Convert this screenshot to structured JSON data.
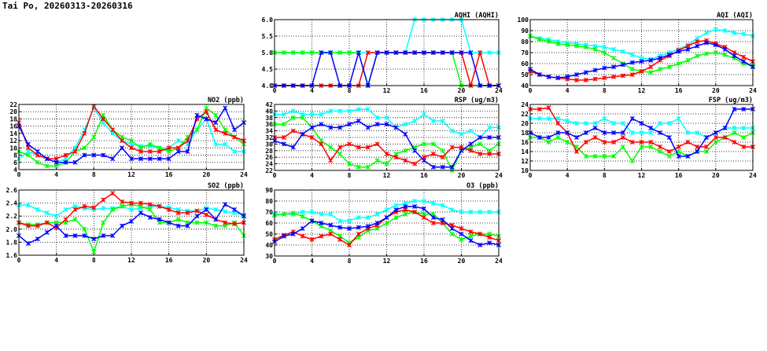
{
  "page": {
    "title": "Tai Po, 20260313-20260316"
  },
  "colors": {
    "day1": "#00ffff",
    "day2": "#00ff00",
    "day3": "#ff0000",
    "day4": "#0000ff"
  },
  "chart_data": [
    {
      "key": "no2",
      "type": "line",
      "title": "NO2 (ppb)",
      "ylim": [
        4,
        22
      ],
      "yticks": [
        4,
        6,
        8,
        10,
        12,
        14,
        16,
        18,
        20,
        22
      ],
      "xlim": [
        0,
        24
      ],
      "xticks": [
        0,
        4,
        8,
        12,
        16,
        20,
        24
      ],
      "grid": true,
      "series": [
        {
          "color": "#00ffff",
          "values": [
            7,
            9,
            8,
            7,
            6,
            7,
            10,
            15,
            21,
            17,
            14,
            12,
            11,
            10.5,
            10.5,
            10,
            10,
            12,
            11,
            15,
            18,
            11,
            11,
            9,
            9
          ]
        },
        {
          "color": "#00ff00",
          "values": [
            9,
            8,
            6,
            5,
            5,
            6,
            9,
            10,
            13,
            19,
            15,
            13,
            12,
            10,
            11,
            10,
            9,
            10,
            13,
            15,
            21,
            19,
            15,
            13,
            11
          ]
        },
        {
          "color": "#ff0000",
          "values": [
            17,
            10,
            8,
            7,
            7,
            8,
            9,
            14,
            21.5,
            18,
            15,
            12,
            10,
            9,
            9,
            9,
            10,
            10,
            12,
            18,
            20,
            15,
            14,
            13,
            12
          ]
        },
        {
          "color": "#0000ff",
          "values": [
            16,
            11,
            9,
            7,
            6,
            6,
            6,
            8,
            8,
            8,
            7,
            10,
            7,
            7,
            7,
            7,
            7,
            9,
            9,
            19,
            18,
            17,
            21,
            15,
            17
          ]
        }
      ]
    },
    {
      "key": "so2",
      "type": "line",
      "title": "SO2 (ppb)",
      "ylim": [
        1.6,
        2.6
      ],
      "yticks": [
        1.6,
        1.8,
        2.0,
        2.2,
        2.4,
        2.6
      ],
      "xlim": [
        0,
        24
      ],
      "xticks": [
        0,
        4,
        8,
        12,
        16,
        20,
        24
      ],
      "grid": true,
      "series": [
        {
          "color": "#00ffff",
          "values": [
            2.37,
            2.37,
            2.3,
            2.25,
            2.2,
            2.3,
            2.35,
            2.32,
            2.3,
            2.32,
            2.32,
            2.35,
            2.3,
            2.32,
            2.35,
            2.35,
            2.33,
            2.3,
            2.28,
            2.28,
            2.32,
            2.3,
            2.27,
            2.25,
            2.22
          ]
        },
        {
          "color": "#00ff00",
          "values": [
            2.1,
            2.07,
            2.07,
            2.1,
            2.1,
            2.1,
            2.15,
            2.0,
            1.65,
            2.1,
            2.3,
            2.35,
            2.38,
            2.35,
            2.3,
            2.1,
            2.1,
            2.15,
            2.1,
            2.1,
            2.1,
            2.05,
            2.05,
            2.1,
            1.9
          ]
        },
        {
          "color": "#ff0000",
          "values": [
            2.1,
            2.05,
            2.05,
            2.1,
            2.02,
            2.15,
            2.3,
            2.35,
            2.33,
            2.45,
            2.55,
            2.42,
            2.4,
            2.4,
            2.38,
            2.35,
            2.3,
            2.25,
            2.25,
            2.28,
            2.22,
            2.15,
            2.1,
            2.08,
            2.1
          ]
        },
        {
          "color": "#0000ff",
          "values": [
            1.9,
            1.78,
            1.85,
            1.95,
            2.05,
            1.9,
            1.9,
            1.9,
            1.85,
            1.9,
            1.9,
            2.05,
            2.12,
            2.25,
            2.18,
            2.15,
            2.1,
            2.05,
            2.05,
            2.2,
            2.3,
            2.15,
            2.38,
            2.3,
            2.2
          ]
        }
      ]
    },
    {
      "key": "aqhi",
      "type": "line",
      "title": "AQHI (AQHI)",
      "ylim": [
        4.0,
        6.0
      ],
      "yticks": [
        4.0,
        4.5,
        5.0,
        5.5,
        6.0
      ],
      "xlim": [
        0,
        24
      ],
      "xticks": [
        0,
        4,
        8,
        12,
        16,
        20,
        24
      ],
      "grid": true,
      "series": [
        {
          "color": "#00ffff",
          "values": [
            5,
            5,
            5,
            5,
            5,
            5,
            5,
            5,
            5,
            5,
            5,
            5,
            5,
            5,
            5,
            6,
            6,
            6,
            6,
            6,
            6,
            5,
            5,
            5,
            5
          ]
        },
        {
          "color": "#00ff00",
          "values": [
            5,
            5,
            5,
            5,
            5,
            5,
            5,
            5,
            5,
            5,
            4,
            5,
            5,
            5,
            5,
            5,
            5,
            5,
            5,
            5,
            4,
            4,
            4,
            4,
            4
          ]
        },
        {
          "color": "#ff0000",
          "values": [
            4,
            4,
            4,
            4,
            4,
            4,
            4,
            4,
            4,
            4,
            5,
            5,
            5,
            5,
            5,
            5,
            5,
            5,
            5,
            5,
            5,
            4,
            5,
            4,
            4
          ]
        },
        {
          "color": "#0000ff",
          "values": [
            4,
            4,
            4,
            4,
            4,
            5,
            5,
            4,
            4,
            5,
            4,
            5,
            5,
            5,
            5,
            5,
            5,
            5,
            5,
            5,
            5,
            5,
            4,
            4,
            4
          ]
        }
      ]
    },
    {
      "key": "rsp",
      "type": "line",
      "title": "RSP (ug/m3)",
      "ylim": [
        22,
        42
      ],
      "yticks": [
        22,
        24,
        26,
        28,
        30,
        32,
        34,
        36,
        38,
        40,
        42
      ],
      "xlim": [
        0,
        24
      ],
      "xticks": [
        0,
        4,
        8,
        12,
        16,
        20,
        24
      ],
      "grid": true,
      "series": [
        {
          "color": "#00ffff",
          "values": [
            39,
            39,
            40,
            39,
            39,
            39,
            40,
            40,
            40,
            40.5,
            40.5,
            38,
            38,
            35,
            36,
            37,
            39,
            37,
            37,
            34,
            33,
            34,
            32,
            35,
            35
          ]
        },
        {
          "color": "#00ff00",
          "values": [
            36,
            36,
            38,
            38,
            35,
            31,
            29,
            27,
            24,
            23,
            23,
            25,
            24,
            27,
            28,
            29,
            30,
            30,
            28,
            22,
            28,
            29,
            30,
            28,
            30
          ]
        },
        {
          "color": "#ff0000",
          "values": [
            32,
            32,
            34,
            33,
            32,
            30,
            25,
            29,
            30,
            29,
            29,
            30,
            27,
            26,
            25,
            24,
            26,
            27,
            26,
            29,
            29,
            28,
            27,
            27,
            27
          ]
        },
        {
          "color": "#0000ff",
          "values": [
            31,
            30,
            29,
            33,
            35,
            36,
            35,
            35,
            36,
            37,
            35,
            36,
            36,
            35,
            33,
            28,
            25,
            23,
            23,
            23,
            28,
            30,
            32,
            32,
            32
          ]
        }
      ]
    },
    {
      "key": "o3",
      "type": "line",
      "title": "O3 (ppb)",
      "ylim": [
        30,
        90
      ],
      "yticks": [
        30,
        40,
        50,
        60,
        70,
        80,
        90
      ],
      "xlim": [
        0,
        24
      ],
      "xticks": [
        0,
        4,
        8,
        12,
        16,
        20,
        24
      ],
      "grid": true,
      "series": [
        {
          "color": "#00ffff",
          "values": [
            68,
            68,
            68,
            70,
            70,
            68,
            68,
            62,
            62,
            65,
            65,
            68,
            72,
            76,
            78,
            80,
            80,
            78,
            76,
            72,
            70,
            70,
            70,
            70,
            70
          ]
        },
        {
          "color": "#00ff00",
          "values": [
            67,
            68,
            69,
            66,
            62,
            57,
            53,
            48,
            42,
            47,
            53,
            55,
            60,
            65,
            68,
            70,
            68,
            68,
            60,
            50,
            45,
            48,
            50,
            50,
            48
          ]
        },
        {
          "color": "#ff0000",
          "values": [
            45,
            49,
            52,
            48,
            45,
            48,
            50,
            45,
            40,
            50,
            55,
            58,
            65,
            70,
            72,
            70,
            65,
            60,
            60,
            58,
            55,
            52,
            50,
            47,
            44
          ]
        },
        {
          "color": "#0000ff",
          "values": [
            43,
            48,
            50,
            55,
            62,
            60,
            58,
            56,
            55,
            56,
            57,
            60,
            65,
            72,
            75,
            75,
            73,
            65,
            63,
            55,
            50,
            44,
            40,
            42,
            40
          ]
        }
      ]
    },
    {
      "key": "aqi",
      "type": "line",
      "title": "AQI (AQI)",
      "ylim": [
        40,
        100
      ],
      "yticks": [
        40,
        50,
        60,
        70,
        80,
        90,
        100
      ],
      "xlim": [
        0,
        24
      ],
      "xticks": [
        0,
        4,
        8,
        12,
        16,
        20,
        24
      ],
      "grid": true,
      "series": [
        {
          "color": "#00ffff",
          "values": [
            85,
            83,
            82,
            80,
            79,
            78,
            77,
            76,
            75,
            73,
            71,
            68,
            65,
            64,
            67,
            70,
            73,
            77,
            83,
            88,
            91,
            90,
            88,
            87,
            85
          ]
        },
        {
          "color": "#00ff00",
          "values": [
            85,
            82,
            80,
            78,
            77,
            76,
            75,
            73,
            70,
            65,
            60,
            55,
            53,
            52,
            55,
            57,
            60,
            63,
            67,
            69,
            70,
            68,
            65,
            60,
            58
          ]
        },
        {
          "color": "#ff0000",
          "values": [
            53,
            50,
            48,
            47,
            46,
            45,
            45,
            46,
            47,
            48,
            49,
            50,
            53,
            57,
            63,
            67,
            72,
            76,
            80,
            81,
            78,
            75,
            70,
            66,
            62
          ]
        },
        {
          "color": "#0000ff",
          "values": [
            55,
            50,
            48,
            47,
            48,
            50,
            52,
            54,
            56,
            57,
            59,
            61,
            62,
            63,
            65,
            68,
            71,
            73,
            76,
            79,
            77,
            73,
            67,
            62,
            57
          ]
        }
      ]
    },
    {
      "key": "fsp",
      "type": "line",
      "title": "FSP (ug/m3)",
      "ylim": [
        10,
        24
      ],
      "yticks": [
        10,
        12,
        14,
        16,
        18,
        20,
        22,
        24
      ],
      "xlim": [
        0,
        24
      ],
      "xticks": [
        0,
        4,
        8,
        12,
        16,
        20,
        24
      ],
      "grid": true,
      "series": [
        {
          "color": "#00ffff",
          "values": [
            21,
            21,
            21,
            21,
            20.5,
            20,
            20,
            20,
            21,
            20,
            20,
            18,
            18,
            18,
            20,
            20,
            21,
            18,
            18,
            17,
            18,
            19,
            19,
            19,
            19
          ]
        },
        {
          "color": "#00ff00",
          "values": [
            17,
            17,
            16,
            17,
            16,
            15,
            13,
            13,
            13,
            13,
            15,
            12,
            15,
            15,
            14,
            13,
            14,
            13,
            14,
            14,
            16,
            17,
            18,
            17,
            18
          ]
        },
        {
          "color": "#ff0000",
          "values": [
            23,
            23,
            23.3,
            20,
            18,
            14,
            16,
            17,
            16,
            16,
            17,
            16,
            16,
            16,
            15,
            14,
            15,
            16,
            15,
            15,
            17,
            17,
            16,
            15,
            15
          ]
        },
        {
          "color": "#0000ff",
          "values": [
            18,
            17,
            17,
            18,
            18,
            17,
            18,
            19,
            18,
            18,
            18,
            21,
            20,
            19,
            18,
            17,
            13,
            13,
            14,
            17,
            18,
            19,
            23,
            23,
            23
          ]
        }
      ]
    }
  ]
}
